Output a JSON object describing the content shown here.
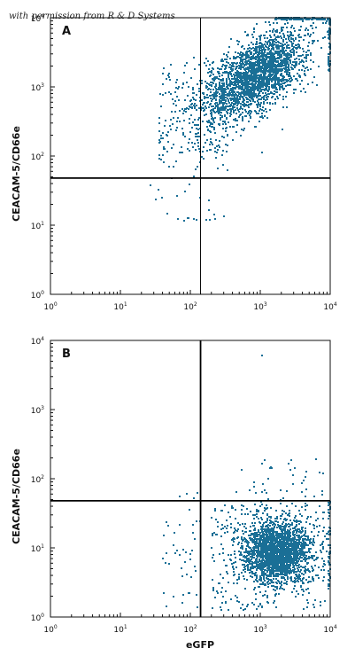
{
  "watermark": "with permission from R & D Systems",
  "colors": {
    "dots": "#1a6f96",
    "axis": "#111111",
    "gate": "#000000"
  },
  "chart_data": [
    {
      "type": "scatter",
      "panel_label": "A",
      "xlabel": "",
      "ylabel": "CEACAM-5/CD66e",
      "xscale": "log",
      "yscale": "log",
      "xlim": [
        1,
        10000
      ],
      "ylim": [
        1,
        10000
      ],
      "x_ticks": [
        1,
        10,
        100,
        1000,
        10000
      ],
      "y_ticks": [
        1,
        10,
        100,
        1000,
        10000
      ],
      "tick_labels": [
        "0",
        "1",
        "2",
        "3",
        "4"
      ],
      "gate": {
        "x": 140,
        "y": 48
      },
      "quadrant_counts_approx": {
        "upper_left": 120,
        "upper_right": 2480,
        "lower_left": 20,
        "lower_right": 2
      },
      "population_center_approx": {
        "x": 900,
        "y": 1500
      },
      "grid": false,
      "legend": "none"
    },
    {
      "type": "scatter",
      "panel_label": "B",
      "xlabel": "eGFP",
      "ylabel": "CEACAM-5/CD66e",
      "xscale": "log",
      "yscale": "log",
      "xlim": [
        1,
        10000
      ],
      "ylim": [
        1,
        10000
      ],
      "x_ticks": [
        1,
        10,
        100,
        1000,
        10000
      ],
      "y_ticks": [
        1,
        10,
        100,
        1000,
        10000
      ],
      "tick_labels": [
        "0",
        "1",
        "2",
        "3",
        "4"
      ],
      "gate": {
        "x": 140,
        "y": 48
      },
      "quadrant_counts_approx": {
        "upper_left": 4,
        "upper_right": 40,
        "lower_left": 40,
        "lower_right": 2300
      },
      "population_center_approx": {
        "x": 1800,
        "y": 9
      },
      "grid": false,
      "legend": "none"
    }
  ]
}
